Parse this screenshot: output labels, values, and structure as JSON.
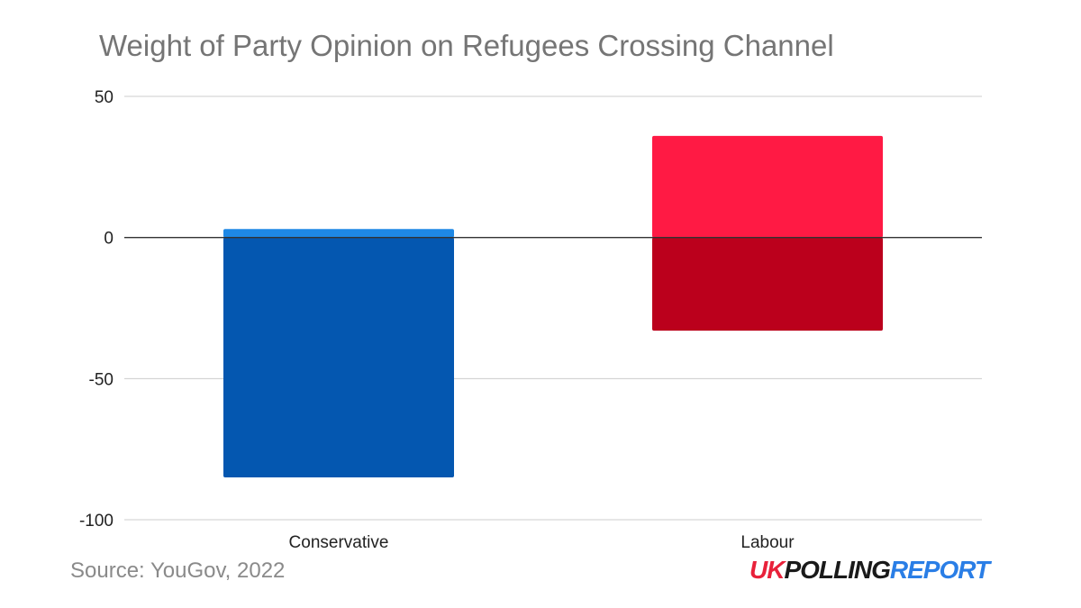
{
  "chart_data": {
    "type": "bar",
    "stacked": true,
    "title": "Weight of Party Opinion on Refugees Crossing Channel",
    "categories": [
      "Conservative",
      "Labour"
    ],
    "series": [
      {
        "color": "#1e88e5",
        "values": [
          3,
          36
        ]
      },
      {
        "color": "#0457b0",
        "values": [
          -85,
          -33
        ]
      }
    ],
    "category_positive_colors": [
      "#1e88e5",
      "#ff1a44"
    ],
    "category_negative_colors": [
      "#0457b0",
      "#bb001c"
    ],
    "ylim": [
      -100,
      50
    ],
    "yticks": [
      50,
      0,
      -50,
      -100
    ],
    "ytick_labels": [
      "50",
      "0",
      "-50",
      "-100"
    ],
    "grid": true,
    "legend": "none"
  },
  "source": "Source: YouGov, 2022",
  "logo": {
    "part1": "UK",
    "part2": "POLLING",
    "part3": "REPORT"
  }
}
